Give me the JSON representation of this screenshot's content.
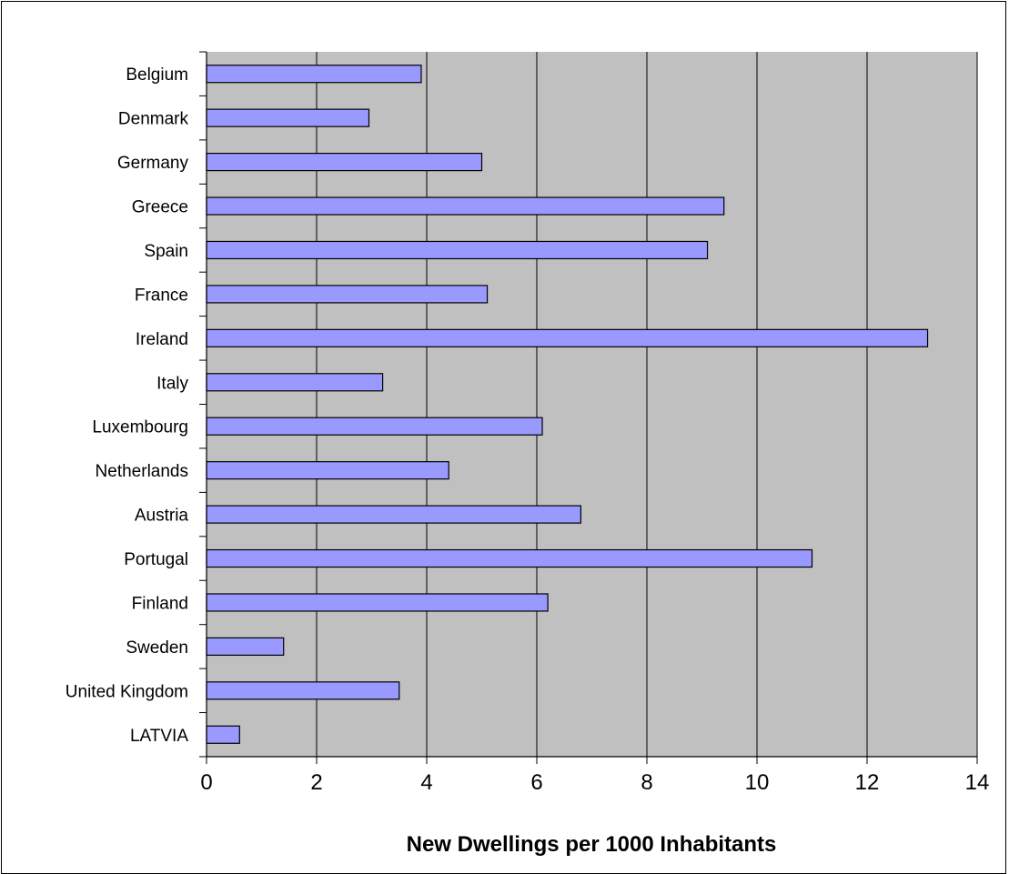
{
  "chart_data": {
    "type": "bar",
    "orientation": "horizontal",
    "title": "",
    "xlabel": "New Dwellings per 1000 Inhabitants",
    "ylabel": "",
    "categories": [
      "Belgium",
      "Denmark",
      "Germany",
      "Greece",
      "Spain",
      "France",
      "Ireland",
      "Italy",
      "Luxembourg",
      "Netherlands",
      "Austria",
      "Portugal",
      "Finland",
      "Sweden",
      "United Kingdom",
      "LATVIA"
    ],
    "values": [
      3.9,
      2.95,
      5.0,
      9.4,
      9.1,
      5.1,
      13.1,
      3.2,
      6.1,
      4.4,
      6.8,
      11.0,
      6.2,
      1.4,
      3.5,
      0.6
    ],
    "xlim": [
      0,
      14
    ],
    "xticks": [
      "0",
      "2",
      "4",
      "6",
      "8",
      "10",
      "12",
      "14"
    ],
    "grid": "vertical",
    "legend": "none",
    "colors": {
      "bar_fill": "#9999ff",
      "bar_stroke": "#000000",
      "plot_background": "#c0c0c0",
      "gridline": "#000000"
    }
  }
}
